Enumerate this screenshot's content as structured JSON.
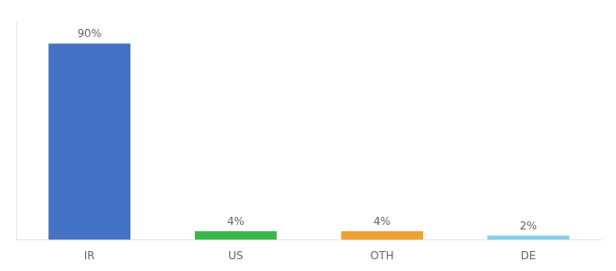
{
  "chart_data": {
    "type": "bar",
    "categories": [
      "IR",
      "US",
      "OTH",
      "DE"
    ],
    "values": [
      90,
      4,
      4,
      2
    ],
    "value_labels": [
      "90%",
      "4%",
      "4%",
      "2%"
    ],
    "colors": [
      "#4472C4",
      "#3CB54A",
      "#F0A030",
      "#87CEEB"
    ],
    "ylim": [
      0,
      100
    ],
    "grid": false,
    "data_labels": true,
    "tick_labels": "x"
  }
}
